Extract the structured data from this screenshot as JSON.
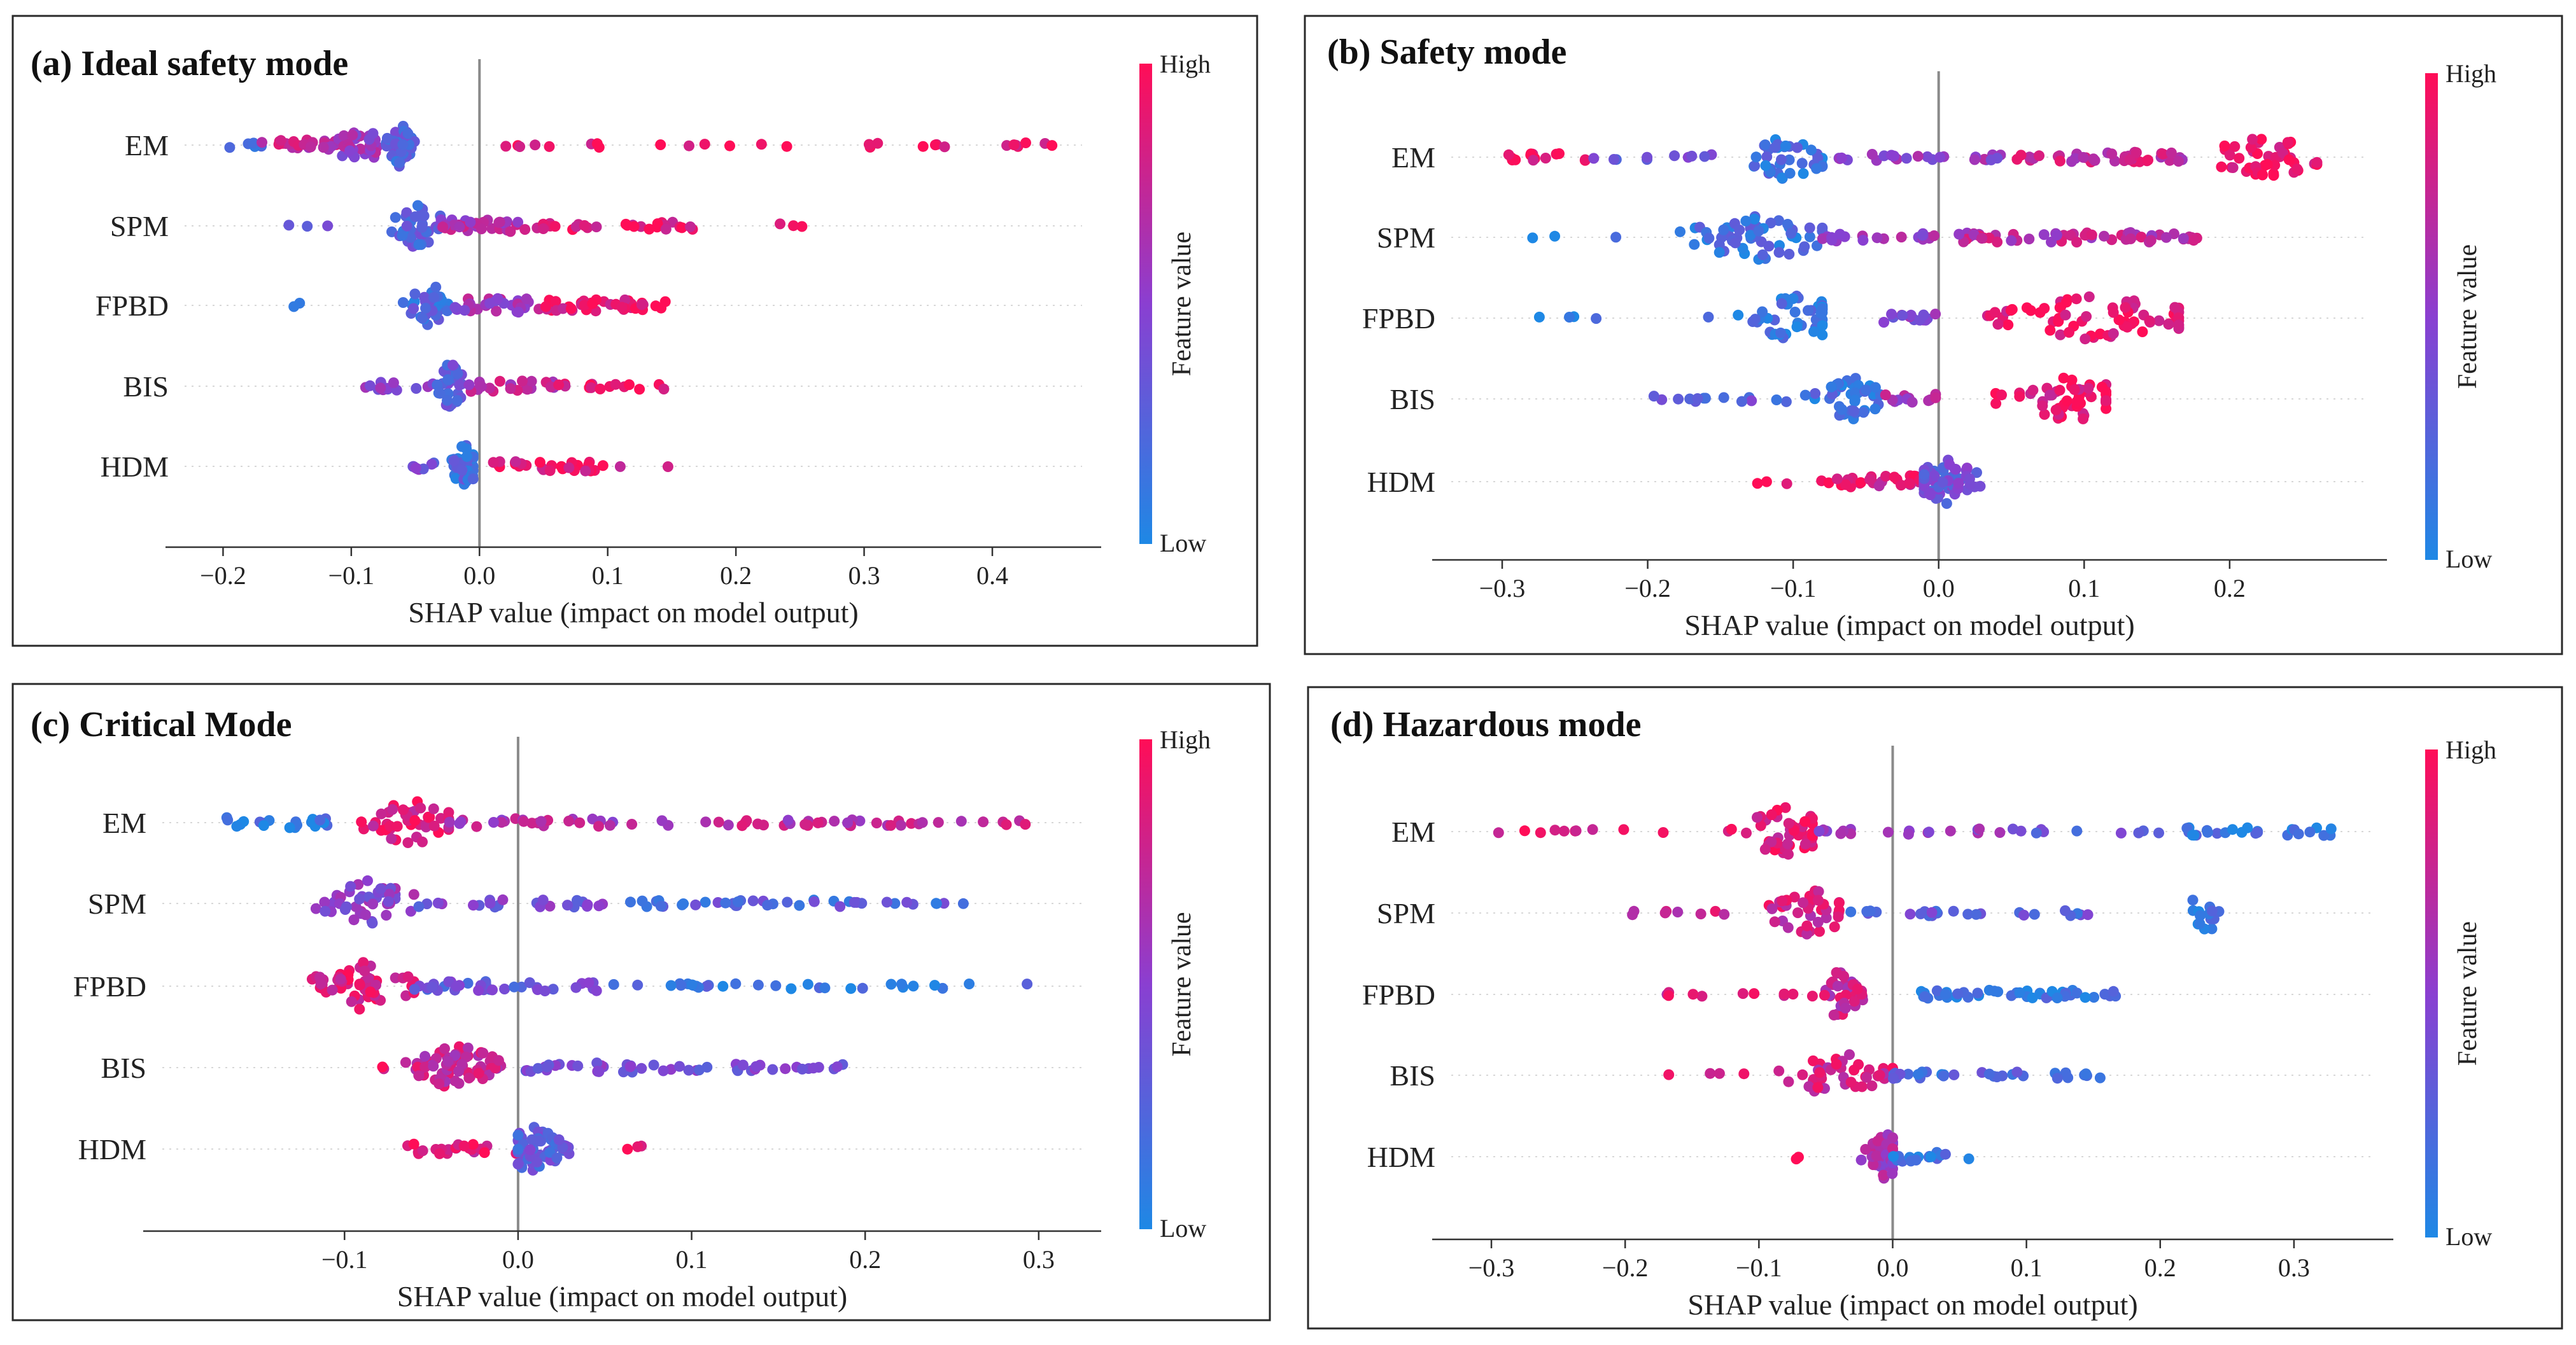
{
  "colors": {
    "low": "#1e88e5",
    "mid": "#8a3fd1",
    "high": "#ff0d57"
  },
  "chart_data": [
    {
      "type": "scatter",
      "subtype": "shap-beeswarm",
      "panel_label": "(a)",
      "title": "Ideal safety mode",
      "xlabel": "SHAP value (impact on model output)",
      "features": [
        "EM",
        "SPM",
        "FPBD",
        "BIS",
        "HDM"
      ],
      "xlim": [
        -0.23,
        0.47
      ],
      "xticks": [
        "−0.2",
        "−0.1",
        "0.0",
        "0.1",
        "0.2",
        "0.3",
        "0.4"
      ],
      "xtick_values": [
        -0.2,
        -0.1,
        0.0,
        0.1,
        0.2,
        0.3,
        0.4
      ],
      "colorbar": {
        "high": "High",
        "low": "Low",
        "name": "Feature value"
      },
      "rows": [
        {
          "feature": "EM",
          "segments": [
            {
              "from": -0.2,
              "to": -0.17,
              "n": 5,
              "c": 0.15
            },
            {
              "from": -0.17,
              "to": -0.11,
              "n": 26,
              "c": 0.75
            },
            {
              "from": -0.11,
              "to": -0.075,
              "n": 34,
              "c": 0.55
            },
            {
              "from": -0.075,
              "to": -0.05,
              "n": 40,
              "c": 0.25,
              "peak": -0.062
            },
            {
              "from": 0.02,
              "to": 0.1,
              "n": 8,
              "c": 0.92
            },
            {
              "from": 0.1,
              "to": 0.3,
              "n": 6,
              "c": 0.95
            },
            {
              "from": 0.3,
              "to": 0.45,
              "n": 14,
              "c": 0.95
            }
          ]
        },
        {
          "feature": "SPM",
          "segments": [
            {
              "from": -0.15,
              "to": -0.1,
              "n": 3,
              "c": 0.4
            },
            {
              "from": -0.08,
              "to": -0.03,
              "n": 40,
              "c": 0.25,
              "peak": -0.048
            },
            {
              "from": -0.03,
              "to": 0.04,
              "n": 30,
              "c": 0.65
            },
            {
              "from": 0.04,
              "to": 0.17,
              "n": 28,
              "c": 0.9
            },
            {
              "from": 0.23,
              "to": 0.27,
              "n": 3,
              "c": 0.95
            }
          ]
        },
        {
          "feature": "FPBD",
          "segments": [
            {
              "from": -0.15,
              "to": -0.14,
              "n": 2,
              "c": 0.05
            },
            {
              "from": -0.06,
              "to": -0.02,
              "n": 40,
              "c": 0.2,
              "peak": -0.038
            },
            {
              "from": -0.02,
              "to": 0.04,
              "n": 30,
              "c": 0.6
            },
            {
              "from": 0.04,
              "to": 0.145,
              "n": 40,
              "c": 0.9
            }
          ]
        },
        {
          "feature": "BIS",
          "segments": [
            {
              "from": -0.09,
              "to": -0.04,
              "n": 12,
              "c": 0.5
            },
            {
              "from": -0.04,
              "to": -0.01,
              "n": 40,
              "c": 0.3,
              "peak": -0.023
            },
            {
              "from": -0.01,
              "to": 0.06,
              "n": 25,
              "c": 0.7
            },
            {
              "from": 0.06,
              "to": 0.15,
              "n": 15,
              "c": 0.92
            }
          ]
        },
        {
          "feature": "HDM",
          "segments": [
            {
              "from": -0.07,
              "to": -0.03,
              "n": 8,
              "c": 0.4
            },
            {
              "from": -0.03,
              "to": -0.005,
              "n": 40,
              "c": 0.2,
              "peak": -0.012
            },
            {
              "from": 0.01,
              "to": 0.11,
              "n": 30,
              "c": 0.9
            },
            {
              "from": 0.14,
              "to": 0.15,
              "n": 1,
              "c": 0.9
            }
          ]
        }
      ]
    },
    {
      "type": "scatter",
      "subtype": "shap-beeswarm",
      "panel_label": "(b)",
      "title": "Safety mode",
      "xlabel": "SHAP value (impact on model output)",
      "features": [
        "EM",
        "SPM",
        "FPBD",
        "BIS",
        "HDM"
      ],
      "xlim": [
        -0.335,
        0.295
      ],
      "xticks": [
        "−0.3",
        "−0.2",
        "−0.1",
        "0.0",
        "0.1",
        "0.2"
      ],
      "xtick_values": [
        -0.3,
        -0.2,
        -0.1,
        0.0,
        0.1,
        0.2
      ],
      "colorbar": {
        "high": "High",
        "low": "Low",
        "name": "Feature value"
      },
      "rows": [
        {
          "feature": "EM",
          "segments": [
            {
              "from": -0.3,
              "to": -0.24,
              "n": 14,
              "c": 0.9
            },
            {
              "from": -0.24,
              "to": -0.15,
              "n": 10,
              "c": 0.35
            },
            {
              "from": -0.15,
              "to": -0.08,
              "n": 40,
              "c": 0.15,
              "peak": -0.105
            },
            {
              "from": -0.08,
              "to": 0.05,
              "n": 25,
              "c": 0.55
            },
            {
              "from": 0.05,
              "to": 0.17,
              "n": 40,
              "c": 0.75
            },
            {
              "from": 0.17,
              "to": 0.26,
              "n": 45,
              "c": 0.95,
              "peak": 0.225
            }
          ]
        },
        {
          "feature": "SPM",
          "segments": [
            {
              "from": -0.29,
              "to": -0.22,
              "n": 3,
              "c": 0.05
            },
            {
              "from": -0.22,
              "to": -0.08,
              "n": 55,
              "c": 0.15,
              "peak": -0.12
            },
            {
              "from": -0.08,
              "to": 0.0,
              "n": 20,
              "c": 0.55
            },
            {
              "from": 0.0,
              "to": 0.18,
              "n": 55,
              "c": 0.7
            }
          ]
        },
        {
          "feature": "FPBD",
          "segments": [
            {
              "from": -0.3,
              "to": -0.23,
              "n": 4,
              "c": 0.05
            },
            {
              "from": -0.2,
              "to": -0.08,
              "n": 45,
              "c": 0.1,
              "peak": -0.1
            },
            {
              "from": -0.04,
              "to": 0.0,
              "n": 15,
              "c": 0.5
            },
            {
              "from": 0.0,
              "to": 0.165,
              "n": 70,
              "c": 0.92,
              "peak": 0.11
            }
          ]
        },
        {
          "feature": "BIS",
          "segments": [
            {
              "from": -0.2,
              "to": -0.1,
              "n": 14,
              "c": 0.3
            },
            {
              "from": -0.1,
              "to": -0.04,
              "n": 40,
              "c": 0.15,
              "peak": -0.06
            },
            {
              "from": -0.04,
              "to": 0.0,
              "n": 12,
              "c": 0.6
            },
            {
              "from": 0.0,
              "to": 0.115,
              "n": 50,
              "c": 0.9,
              "peak": 0.09
            }
          ]
        },
        {
          "feature": "HDM",
          "segments": [
            {
              "from": -0.13,
              "to": -0.07,
              "n": 5,
              "c": 0.9
            },
            {
              "from": -0.07,
              "to": -0.01,
              "n": 25,
              "c": 0.85
            },
            {
              "from": -0.01,
              "to": 0.05,
              "n": 60,
              "c": 0.35,
              "peak": 0.005
            }
          ]
        }
      ]
    },
    {
      "type": "scatter",
      "subtype": "shap-beeswarm",
      "panel_label": "(c)",
      "title": "Critical Mode",
      "xlabel": "SHAP value (impact on model output)",
      "features": [
        "EM",
        "SPM",
        "FPBD",
        "BIS",
        "HDM"
      ],
      "xlim": [
        -0.205,
        0.325
      ],
      "xticks": [
        "−0.1",
        "0.0",
        "0.1",
        "0.2",
        "0.3"
      ],
      "xtick_values": [
        -0.1,
        0.0,
        0.1,
        0.2,
        0.3
      ],
      "colorbar": {
        "high": "High",
        "low": "Low",
        "name": "Feature value"
      },
      "rows": [
        {
          "feature": "EM",
          "segments": [
            {
              "from": -0.17,
              "to": -0.11,
              "n": 20,
              "c": 0.1
            },
            {
              "from": -0.11,
              "to": -0.04,
              "n": 45,
              "c": 0.85,
              "peak": -0.06
            },
            {
              "from": -0.04,
              "to": 0.06,
              "n": 25,
              "c": 0.65
            },
            {
              "from": 0.06,
              "to": 0.3,
              "n": 40,
              "c": 0.7
            }
          ]
        },
        {
          "feature": "SPM",
          "segments": [
            {
              "from": -0.13,
              "to": -0.06,
              "n": 45,
              "c": 0.5,
              "peak": -0.085
            },
            {
              "from": -0.06,
              "to": 0.05,
              "n": 25,
              "c": 0.4
            },
            {
              "from": 0.05,
              "to": 0.26,
              "n": 40,
              "c": 0.25
            }
          ]
        },
        {
          "feature": "FPBD",
          "segments": [
            {
              "from": -0.14,
              "to": -0.06,
              "n": 55,
              "c": 0.85,
              "peak": -0.09
            },
            {
              "from": -0.06,
              "to": 0.05,
              "n": 35,
              "c": 0.35
            },
            {
              "from": 0.05,
              "to": 0.3,
              "n": 30,
              "c": 0.15
            }
          ]
        },
        {
          "feature": "BIS",
          "segments": [
            {
              "from": -0.09,
              "to": -0.06,
              "n": 2,
              "c": 0.9
            },
            {
              "from": -0.07,
              "to": 0.0,
              "n": 65,
              "c": 0.75,
              "peak": -0.035
            },
            {
              "from": 0.0,
              "to": 0.08,
              "n": 25,
              "c": 0.4
            },
            {
              "from": 0.08,
              "to": 0.21,
              "n": 25,
              "c": 0.4
            }
          ]
        },
        {
          "feature": "HDM",
          "segments": [
            {
              "from": -0.075,
              "to": 0.0,
              "n": 25,
              "c": 0.85
            },
            {
              "from": 0.0,
              "to": 0.045,
              "n": 60,
              "c": 0.3,
              "peak": 0.008
            },
            {
              "from": 0.06,
              "to": 0.075,
              "n": 3,
              "c": 0.9
            }
          ]
        }
      ]
    },
    {
      "type": "scatter",
      "subtype": "shap-beeswarm",
      "panel_label": "(d)",
      "title": "Hazardous mode",
      "xlabel": "SHAP value (impact on model output)",
      "features": [
        "EM",
        "SPM",
        "FPBD",
        "BIS",
        "HDM"
      ],
      "xlim": [
        -0.33,
        0.36
      ],
      "xticks": [
        "−0.3",
        "−0.2",
        "−0.1",
        "0.0",
        "0.1",
        "0.2",
        "0.3"
      ],
      "xtick_values": [
        -0.3,
        -0.2,
        -0.1,
        0.0,
        0.1,
        0.2,
        0.3
      ],
      "colorbar": {
        "high": "High",
        "low": "Low",
        "name": "Feature value"
      },
      "rows": [
        {
          "feature": "EM",
          "segments": [
            {
              "from": -0.3,
              "to": -0.17,
              "n": 10,
              "c": 0.92
            },
            {
              "from": -0.17,
              "to": -0.06,
              "n": 50,
              "c": 0.88,
              "peak": -0.08
            },
            {
              "from": -0.06,
              "to": 0.1,
              "n": 20,
              "c": 0.55
            },
            {
              "from": 0.1,
              "to": 0.2,
              "n": 8,
              "c": 0.3
            },
            {
              "from": 0.22,
              "to": 0.33,
              "n": 25,
              "c": 0.1
            }
          ]
        },
        {
          "feature": "SPM",
          "segments": [
            {
              "from": -0.2,
              "to": -0.12,
              "n": 8,
              "c": 0.8
            },
            {
              "from": -0.12,
              "to": -0.04,
              "n": 40,
              "c": 0.8,
              "peak": -0.06
            },
            {
              "from": -0.04,
              "to": 0.15,
              "n": 25,
              "c": 0.3
            },
            {
              "from": 0.22,
              "to": 0.26,
              "n": 14,
              "c": 0.1,
              "peak": 0.235
            }
          ]
        },
        {
          "feature": "FPBD",
          "segments": [
            {
              "from": -0.17,
              "to": -0.06,
              "n": 10,
              "c": 0.8
            },
            {
              "from": -0.06,
              "to": -0.01,
              "n": 40,
              "c": 0.75,
              "peak": -0.04
            },
            {
              "from": 0.02,
              "to": 0.17,
              "n": 45,
              "c": 0.1
            }
          ]
        },
        {
          "feature": "BIS",
          "segments": [
            {
              "from": -0.19,
              "to": -0.1,
              "n": 4,
              "c": 0.9
            },
            {
              "from": -0.1,
              "to": 0.0,
              "n": 45,
              "c": 0.8,
              "peak": -0.04
            },
            {
              "from": 0.0,
              "to": 0.16,
              "n": 30,
              "c": 0.2
            }
          ]
        },
        {
          "feature": "HDM",
          "segments": [
            {
              "from": -0.09,
              "to": -0.07,
              "n": 2,
              "c": 0.9
            },
            {
              "from": -0.04,
              "to": 0.0,
              "n": 40,
              "c": 0.6,
              "peak": -0.005
            },
            {
              "from": 0.0,
              "to": 0.06,
              "n": 18,
              "c": 0.1
            }
          ]
        }
      ]
    }
  ]
}
